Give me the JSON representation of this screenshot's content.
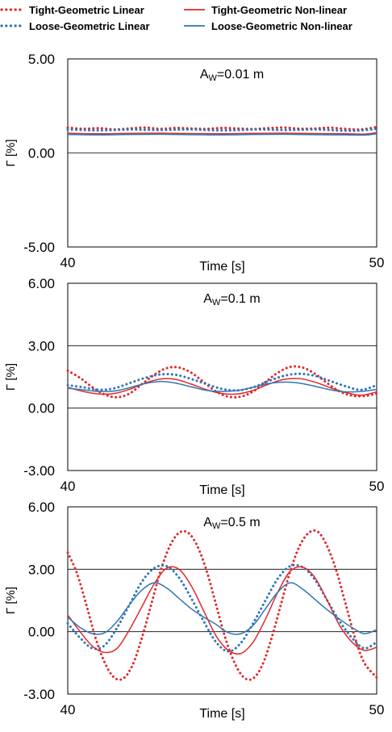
{
  "legend": {
    "items": [
      {
        "label": "Tight-Geometric Linear",
        "color": "#e0292b",
        "style": "dotted"
      },
      {
        "label": "Tight-Geometric Non-linear",
        "color": "#e0292b",
        "style": "solid"
      },
      {
        "label": "Loose-Geometric Linear",
        "color": "#2e75b6",
        "style": "dotted"
      },
      {
        "label": "Loose-Geometric Non-linear",
        "color": "#2e75b6",
        "style": "solid"
      }
    ]
  },
  "chart_data": [
    {
      "type": "line",
      "annotation_main": "A",
      "annotation_sub": "W",
      "annotation_rest": "=0.01 m",
      "xlabel": "Time [s]",
      "ylabel": "Γ [%]",
      "xlim": [
        40,
        50
      ],
      "ylim": [
        -5,
        5
      ],
      "yticks": [
        5,
        0,
        -5
      ],
      "ytick_labels": [
        "5.00",
        "0.00",
        "-5.00"
      ],
      "xtick_labels": [
        "40",
        "50"
      ],
      "hgrid": [
        0
      ],
      "series": [
        {
          "color": "#e0292b",
          "style": "dotted",
          "x": [
            40,
            40.5,
            41,
            41.5,
            42,
            42.5,
            43,
            43.5,
            44,
            44.5,
            45,
            45.5,
            46,
            46.5,
            47,
            47.5,
            48,
            48.5,
            49,
            49.5,
            50
          ],
          "y": [
            1.35,
            1.28,
            1.32,
            1.25,
            1.3,
            1.35,
            1.28,
            1.33,
            1.3,
            1.28,
            1.33,
            1.3,
            1.27,
            1.32,
            1.35,
            1.29,
            1.3,
            1.34,
            1.28,
            1.25,
            1.38
          ]
        },
        {
          "color": "#2e75b6",
          "style": "dotted",
          "x": [
            40,
            40.5,
            41,
            41.5,
            42,
            42.5,
            43,
            43.5,
            44,
            44.5,
            45,
            45.5,
            46,
            46.5,
            47,
            47.5,
            48,
            48.5,
            49,
            49.5,
            50
          ],
          "y": [
            1.25,
            1.22,
            1.2,
            1.22,
            1.25,
            1.23,
            1.22,
            1.24,
            1.25,
            1.22,
            1.2,
            1.22,
            1.25,
            1.24,
            1.22,
            1.23,
            1.25,
            1.22,
            1.18,
            1.2,
            1.28
          ]
        },
        {
          "color": "#e0292b",
          "style": "solid",
          "x": [
            40,
            41,
            42,
            43,
            44,
            45,
            46,
            47,
            48,
            49,
            49.6,
            50
          ],
          "y": [
            1.05,
            1.02,
            1.04,
            1.05,
            1.03,
            1.02,
            1.04,
            1.05,
            1.03,
            1.02,
            1.0,
            1.08
          ]
        },
        {
          "color": "#2e75b6",
          "style": "solid",
          "x": [
            40,
            41,
            42,
            43,
            44,
            45,
            46,
            47,
            48,
            49,
            49.6,
            50
          ],
          "y": [
            0.98,
            0.96,
            0.98,
            0.99,
            0.97,
            0.96,
            0.98,
            0.99,
            0.97,
            0.96,
            0.95,
            1.02
          ]
        }
      ]
    },
    {
      "type": "line",
      "annotation_main": "A",
      "annotation_sub": "W",
      "annotation_rest": "=0.1 m",
      "xlabel": "Time [s]",
      "ylabel": "Γ [%]",
      "xlim": [
        40,
        50
      ],
      "ylim": [
        -3,
        6
      ],
      "yticks": [
        6,
        3,
        0,
        -3
      ],
      "ytick_labels": [
        "6.00",
        "3.00",
        "0.00",
        "-3.00"
      ],
      "xtick_labels": [
        "40",
        "50"
      ],
      "hgrid": [
        3,
        0
      ],
      "series": [
        {
          "color": "#e0292b",
          "style": "dotted",
          "x": [
            40,
            40.4,
            40.8,
            41.2,
            41.6,
            42,
            42.4,
            42.8,
            43.2,
            43.6,
            44,
            44.4,
            44.8,
            45.2,
            45.6,
            46,
            46.4,
            46.8,
            47.2,
            47.6,
            48,
            48.4,
            48.8,
            49.2,
            49.6,
            50
          ],
          "y": [
            1.8,
            1.45,
            1.0,
            0.65,
            0.52,
            0.7,
            1.15,
            1.6,
            1.92,
            1.95,
            1.7,
            1.25,
            0.8,
            0.55,
            0.55,
            0.8,
            1.25,
            1.7,
            1.98,
            1.95,
            1.65,
            1.2,
            0.8,
            0.6,
            0.58,
            0.7
          ]
        },
        {
          "color": "#2e75b6",
          "style": "dotted",
          "x": [
            40,
            40.5,
            41,
            41.5,
            42,
            42.5,
            43,
            43.5,
            44,
            44.5,
            45,
            45.5,
            46,
            46.5,
            47,
            47.5,
            48,
            48.5,
            49,
            49.5,
            50
          ],
          "y": [
            1.1,
            1.0,
            0.88,
            0.95,
            1.2,
            1.45,
            1.62,
            1.6,
            1.4,
            1.15,
            0.92,
            0.85,
            1.0,
            1.3,
            1.55,
            1.65,
            1.55,
            1.3,
            1.05,
            0.88,
            1.1
          ]
        },
        {
          "color": "#e0292b",
          "style": "solid",
          "x": [
            40,
            40.5,
            41,
            41.5,
            42,
            42.5,
            43,
            43.5,
            44,
            44.5,
            45,
            45.5,
            46,
            46.5,
            47,
            47.5,
            48,
            48.5,
            49,
            49.5,
            50
          ],
          "y": [
            1.0,
            0.8,
            0.68,
            0.7,
            0.9,
            1.2,
            1.4,
            1.38,
            1.15,
            0.88,
            0.7,
            0.68,
            0.85,
            1.15,
            1.38,
            1.42,
            1.25,
            0.98,
            0.75,
            0.62,
            0.78
          ]
        },
        {
          "color": "#2e75b6",
          "style": "solid",
          "x": [
            40,
            40.5,
            41,
            41.5,
            42,
            42.5,
            43,
            43.5,
            44,
            44.5,
            45,
            45.5,
            46,
            46.5,
            47,
            47.5,
            48,
            48.5,
            49,
            49.5,
            50
          ],
          "y": [
            0.95,
            0.88,
            0.8,
            0.82,
            0.98,
            1.18,
            1.28,
            1.2,
            1.02,
            0.85,
            0.8,
            0.85,
            1.0,
            1.18,
            1.25,
            1.2,
            1.05,
            0.88,
            0.78,
            0.8,
            0.9
          ]
        }
      ]
    },
    {
      "type": "line",
      "annotation_main": "A",
      "annotation_sub": "W",
      "annotation_rest": "=0.5 m",
      "xlabel": "Time [s]",
      "ylabel": "Γ [%]",
      "xlim": [
        40,
        50
      ],
      "ylim": [
        -3,
        6
      ],
      "yticks": [
        6,
        3,
        0,
        -3
      ],
      "ytick_labels": [
        "6.00",
        "3.00",
        "0.00",
        "-3.00"
      ],
      "xtick_labels": [
        "40",
        "50"
      ],
      "hgrid": [
        3,
        0
      ],
      "series": [
        {
          "color": "#e0292b",
          "style": "dotted",
          "x": [
            40,
            40.3,
            40.6,
            40.9,
            41.2,
            41.5,
            41.8,
            42.1,
            42.4,
            42.7,
            43,
            43.3,
            43.6,
            43.9,
            44.2,
            44.5,
            44.8,
            45.1,
            45.4,
            45.7,
            46,
            46.3,
            46.6,
            46.9,
            47.2,
            47.5,
            47.8,
            48.1,
            48.4,
            48.7,
            49,
            49.3,
            49.6,
            50
          ],
          "y": [
            3.8,
            2.8,
            1.3,
            -0.3,
            -1.5,
            -2.2,
            -2.25,
            -1.6,
            -0.3,
            1.3,
            2.9,
            4.1,
            4.75,
            4.75,
            4.1,
            2.9,
            1.3,
            -0.3,
            -1.5,
            -2.2,
            -2.25,
            -1.6,
            -0.3,
            1.3,
            2.9,
            4.1,
            4.75,
            4.8,
            4.1,
            2.9,
            1.3,
            -0.3,
            -1.5,
            -2.2
          ]
        },
        {
          "color": "#2e75b6",
          "style": "dotted",
          "x": [
            40,
            40.4,
            40.8,
            41.2,
            41.6,
            42,
            42.4,
            42.8,
            43.2,
            43.6,
            44,
            44.4,
            44.8,
            45.2,
            45.6,
            46,
            46.4,
            46.8,
            47.2,
            47.6,
            48,
            48.4,
            48.8,
            49.2,
            49.6,
            50
          ],
          "y": [
            0.4,
            -0.3,
            -0.8,
            -0.65,
            0.2,
            1.3,
            2.4,
            3.05,
            3.15,
            2.6,
            1.6,
            0.5,
            -0.5,
            -0.95,
            -0.55,
            0.4,
            1.5,
            2.55,
            3.15,
            3.1,
            2.5,
            1.5,
            0.5,
            -0.3,
            -0.8,
            -0.5
          ]
        },
        {
          "color": "#e0292b",
          "style": "solid",
          "x": [
            40,
            40.4,
            40.8,
            41.2,
            41.6,
            42,
            42.4,
            42.8,
            43.2,
            43.6,
            44,
            44.4,
            44.8,
            45.2,
            45.6,
            46,
            46.4,
            46.8,
            47.2,
            47.6,
            48,
            48.4,
            48.8,
            49.2,
            49.6,
            50
          ],
          "y": [
            0.8,
            0.0,
            -0.7,
            -1.0,
            -0.8,
            0.1,
            1.2,
            2.3,
            3.05,
            3.0,
            2.2,
            1.0,
            -0.2,
            -0.9,
            -1.05,
            -0.5,
            0.6,
            1.9,
            2.9,
            3.1,
            2.6,
            1.5,
            0.3,
            -0.5,
            -0.9,
            -0.75
          ]
        },
        {
          "color": "#2e75b6",
          "style": "solid",
          "x": [
            40,
            40.4,
            40.8,
            41.2,
            41.6,
            42,
            42.4,
            42.8,
            43.2,
            43.6,
            44,
            44.4,
            44.8,
            45.2,
            45.6,
            46,
            46.4,
            46.8,
            47.2,
            47.6,
            48,
            48.4,
            48.8,
            49.2,
            49.6,
            50
          ],
          "y": [
            0.7,
            0.2,
            -0.1,
            -0.05,
            0.5,
            1.3,
            2.0,
            2.35,
            2.1,
            1.6,
            1.1,
            0.7,
            0.35,
            -0.05,
            -0.1,
            0.3,
            1.1,
            1.9,
            2.35,
            2.05,
            1.55,
            1.05,
            0.6,
            0.2,
            -0.1,
            0.1
          ]
        }
      ]
    }
  ]
}
